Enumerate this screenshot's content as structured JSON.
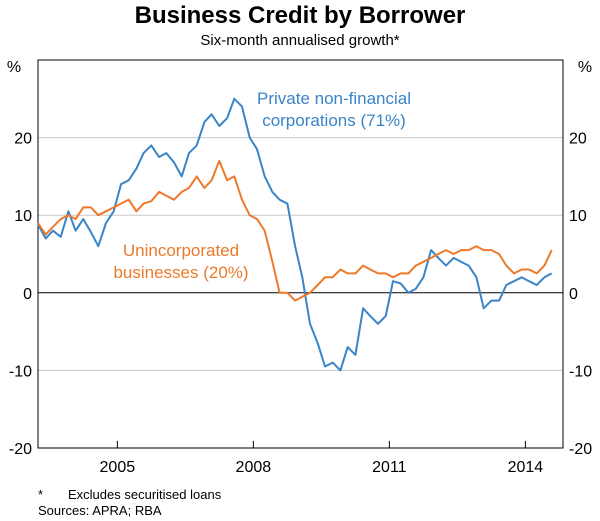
{
  "title": "Business Credit by Borrower",
  "subtitle": "Six-month annualised growth*",
  "footnote": {
    "marker": "*",
    "text": "Excludes securitised loans"
  },
  "sources": "Sources: APRA; RBA",
  "colors": {
    "private": "#3a84c8",
    "unincorporated": "#ec7a2a",
    "axis": "#000000",
    "grid": "#c8c8c8"
  },
  "chart_data": {
    "type": "line",
    "ylabel_left": "%",
    "ylabel_right": "%",
    "ylim": [
      -20,
      30
    ],
    "xlim": [
      2003.25,
      2014.83
    ],
    "yticks": [
      {
        "value": 20,
        "label": "20"
      },
      {
        "value": 10,
        "label": "10"
      },
      {
        "value": 0,
        "label": "0"
      },
      {
        "value": -10,
        "label": "-10"
      },
      {
        "value": -20,
        "label": "-20"
      }
    ],
    "xticks": [
      {
        "value": 2005,
        "label": "2005"
      },
      {
        "value": 2008,
        "label": "2008"
      },
      {
        "value": 2011,
        "label": "2011"
      },
      {
        "value": 2014,
        "label": "2014"
      }
    ],
    "annotations": [
      {
        "series": "private",
        "lines": [
          "Private non-financial",
          "corporations (71%)"
        ]
      },
      {
        "series": "unincorporated",
        "lines": [
          "Unincorporated",
          "businesses (20%)"
        ]
      }
    ],
    "series": [
      {
        "name": "Private non-financial corporations (71%)",
        "key": "private",
        "x": [
          2003.25,
          2003.42,
          2003.58,
          2003.75,
          2003.92,
          2004.08,
          2004.25,
          2004.42,
          2004.58,
          2004.75,
          2004.92,
          2005.08,
          2005.25,
          2005.42,
          2005.58,
          2005.75,
          2005.92,
          2006.08,
          2006.25,
          2006.42,
          2006.58,
          2006.75,
          2006.92,
          2007.08,
          2007.25,
          2007.42,
          2007.58,
          2007.75,
          2007.92,
          2008.08,
          2008.25,
          2008.42,
          2008.58,
          2008.75,
          2008.92,
          2009.08,
          2009.25,
          2009.42,
          2009.58,
          2009.75,
          2009.92,
          2010.08,
          2010.25,
          2010.42,
          2010.58,
          2010.75,
          2010.92,
          2011.08,
          2011.25,
          2011.42,
          2011.58,
          2011.75,
          2011.92,
          2012.08,
          2012.25,
          2012.42,
          2012.58,
          2012.75,
          2012.92,
          2013.08,
          2013.25,
          2013.42,
          2013.58,
          2013.75,
          2013.92,
          2014.08,
          2014.25,
          2014.42,
          2014.58
        ],
        "values": [
          8.8,
          7,
          8,
          7.2,
          10.5,
          8,
          9.5,
          7.8,
          6,
          9,
          10.5,
          14,
          14.5,
          16,
          18,
          19,
          17.5,
          18,
          16.8,
          15,
          18,
          19,
          22,
          23,
          21.5,
          22.5,
          25,
          24,
          20,
          18.5,
          15,
          13,
          12,
          11.5,
          6,
          2,
          -4,
          -6.5,
          -9.5,
          -9,
          -10,
          -7,
          -8,
          -2,
          -3,
          -4,
          -3,
          1.5,
          1.2,
          0,
          0.5,
          2,
          5.5,
          4.5,
          3.5,
          4.5,
          4,
          3.5,
          2,
          -2,
          -1,
          -1,
          1,
          1.5,
          2,
          1.5,
          1,
          2,
          2.5
        ]
      },
      {
        "name": "Unincorporated businesses (20%)",
        "key": "unincorporated",
        "x": [
          2003.25,
          2003.42,
          2003.58,
          2003.75,
          2003.92,
          2004.08,
          2004.25,
          2004.42,
          2004.58,
          2004.75,
          2004.92,
          2005.08,
          2005.25,
          2005.42,
          2005.58,
          2005.75,
          2005.92,
          2006.08,
          2006.25,
          2006.42,
          2006.58,
          2006.75,
          2006.92,
          2007.08,
          2007.25,
          2007.42,
          2007.58,
          2007.75,
          2007.92,
          2008.08,
          2008.25,
          2008.42,
          2008.58,
          2008.75,
          2008.92,
          2009.08,
          2009.25,
          2009.42,
          2009.58,
          2009.75,
          2009.92,
          2010.08,
          2010.25,
          2010.42,
          2010.58,
          2010.75,
          2010.92,
          2011.08,
          2011.25,
          2011.42,
          2011.58,
          2011.75,
          2011.92,
          2012.08,
          2012.25,
          2012.42,
          2012.58,
          2012.75,
          2012.92,
          2013.08,
          2013.25,
          2013.42,
          2013.58,
          2013.75,
          2013.92,
          2014.08,
          2014.25,
          2014.42,
          2014.58
        ],
        "values": [
          9,
          7.5,
          8.5,
          9.5,
          10,
          9.5,
          11,
          11,
          10,
          10.5,
          11,
          11.5,
          12,
          10.5,
          11.5,
          11.8,
          13,
          12.5,
          12,
          13,
          13.5,
          15,
          13.5,
          14.5,
          17,
          14.5,
          15,
          12,
          10,
          9.5,
          8,
          4,
          0,
          0,
          -1,
          -0.5,
          0,
          1,
          2,
          2,
          3,
          2.5,
          2.5,
          3.5,
          3,
          2.5,
          2.5,
          2,
          2.5,
          2.5,
          3.5,
          4,
          4.5,
          5,
          5.5,
          5,
          5.5,
          5.5,
          6,
          5.5,
          5.5,
          5,
          3.5,
          2.5,
          3,
          3,
          2.5,
          3.5,
          5.5
        ]
      }
    ]
  }
}
